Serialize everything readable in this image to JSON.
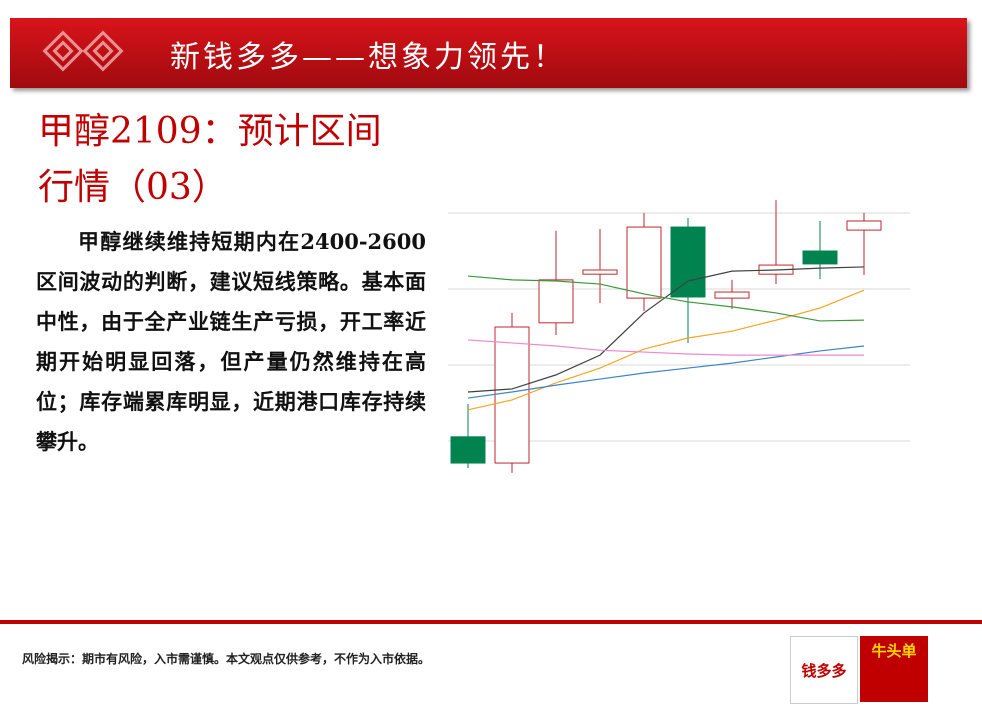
{
  "header": {
    "title": "新钱多多——想象力领先！"
  },
  "slide": {
    "title": "甲醇2109：预计区间行情（03）",
    "body": "甲醇继续维持短期内在2400-2600区间波动的判断，建议短线策略。基本面中性，由于全产业链生产亏损，开工率近期开始明显回落，但产量仍然维持在高位；库存端累库明显，近期港口库存持续攀升。"
  },
  "chart_data": {
    "type": "candlestick",
    "open": [
      11.1,
      4.2,
      41.1,
      53.9,
      47.6,
      66.3,
      47.6,
      53.9,
      60.0,
      65.5
    ],
    "high": [
      19.7,
      43.7,
      65.3,
      65.8,
      70.0,
      68.7,
      52.4,
      73.4,
      67.9,
      70.0
    ],
    "low": [
      2.9,
      1.6,
      37.9,
      46.3,
      44.2,
      35.8,
      44.7,
      51.3,
      52.6,
      53.7
    ],
    "close": [
      4.2,
      40.0,
      52.4,
      55.0,
      66.3,
      47.9,
      49.2,
      56.3,
      56.6,
      67.9
    ],
    "up_color": "#c0272d",
    "down_color": "#00834f",
    "ylim": [
      0,
      75
    ],
    "yticks": [
      10,
      30,
      50,
      70
    ],
    "grid": true,
    "series": [
      {
        "color": "#404040",
        "values": [
          22.9,
          23.7,
          27.4,
          32.6,
          43.7,
          52.1,
          54.7,
          55.0,
          55.5,
          55.8
        ]
      },
      {
        "color": "#f5a623",
        "values": [
          18.2,
          20.8,
          25.3,
          29.2,
          34.2,
          37.1,
          38.9,
          41.8,
          45.0,
          49.7
        ]
      },
      {
        "color": "#3a85c8",
        "values": [
          21.3,
          22.9,
          24.7,
          26.3,
          27.9,
          29.2,
          30.5,
          32.1,
          33.7,
          35.0
        ]
      },
      {
        "color": "#ee88d0",
        "values": [
          36.6,
          35.8,
          35.0,
          33.9,
          33.4,
          32.9,
          32.6,
          32.6,
          32.6,
          32.6
        ]
      },
      {
        "color": "#3c9a3c",
        "values": [
          53.4,
          52.4,
          52.1,
          51.3,
          48.7,
          46.6,
          45.3,
          43.7,
          41.6,
          41.8
        ]
      }
    ]
  },
  "footer": {
    "risk_note": "风险揭示：期市有风险，入市需谨慎。本文观点仅供参考，不作为入市依据。",
    "logos": [
      "钱多多",
      "牛头单"
    ]
  }
}
